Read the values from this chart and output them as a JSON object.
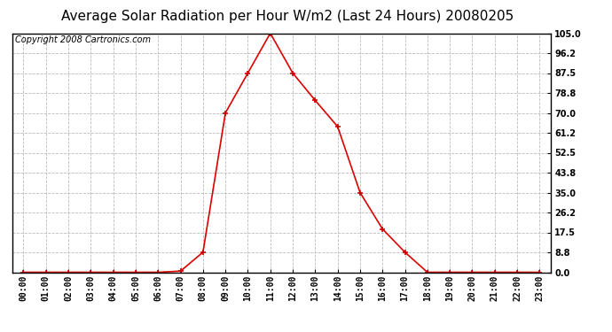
{
  "title": "Average Solar Radiation per Hour W/m2 (Last 24 Hours) 20080205",
  "copyright": "Copyright 2008 Cartronics.com",
  "hours": [
    "00:00",
    "01:00",
    "02:00",
    "03:00",
    "04:00",
    "05:00",
    "06:00",
    "07:00",
    "08:00",
    "09:00",
    "10:00",
    "11:00",
    "12:00",
    "13:00",
    "14:00",
    "15:00",
    "16:00",
    "17:00",
    "18:00",
    "19:00",
    "20:00",
    "21:00",
    "22:00",
    "23:00"
  ],
  "values": [
    0.0,
    0.0,
    0.0,
    0.0,
    0.0,
    0.0,
    0.0,
    0.5,
    8.8,
    70.0,
    87.5,
    105.0,
    87.5,
    75.5,
    64.0,
    35.0,
    19.0,
    8.8,
    0.0,
    0.0,
    0.0,
    0.0,
    0.0,
    0.0
  ],
  "yticks": [
    0.0,
    8.8,
    17.5,
    26.2,
    35.0,
    43.8,
    52.5,
    61.2,
    70.0,
    78.8,
    87.5,
    96.2,
    105.0
  ],
  "ymin": 0.0,
  "ymax": 105.0,
  "line_color": "#dd0000",
  "marker": "+",
  "marker_color": "#cc0000",
  "bg_color": "#ffffff",
  "grid_color": "#bbbbbb",
  "title_fontsize": 11,
  "copyright_fontsize": 7,
  "tick_fontsize": 7,
  "tick_label_fontweight": "bold"
}
